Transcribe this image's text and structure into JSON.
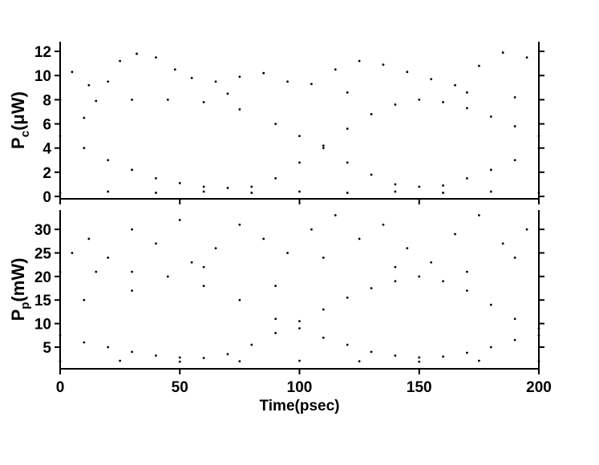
{
  "chart_data": [
    {
      "type": "scatter",
      "y_label": {
        "main": "P",
        "sub": "c",
        "unit": "(μW)"
      },
      "xlim": [
        0,
        200
      ],
      "xticks": [
        0,
        50,
        100,
        150,
        200
      ],
      "ylim": [
        -0.2,
        12.8
      ],
      "yticks": [
        0,
        2,
        4,
        6,
        8,
        10,
        12
      ],
      "color": "#000000",
      "x": [
        0,
        20,
        40,
        60,
        80,
        100,
        120,
        140,
        160,
        180,
        200,
        0,
        10,
        20,
        30,
        40,
        50,
        60,
        70,
        80,
        90,
        100,
        110,
        120,
        130,
        140,
        150,
        160,
        170,
        180,
        190,
        200,
        0,
        15,
        30,
        45,
        60,
        75,
        90,
        100,
        110,
        120,
        130,
        140,
        150,
        160,
        170,
        180,
        190,
        200,
        5,
        12,
        25,
        32,
        40,
        48,
        55,
        65,
        75,
        85,
        95,
        105,
        115,
        125,
        135,
        145,
        155,
        165,
        175,
        185,
        195,
        20,
        70,
        120,
        170,
        10,
        190
      ],
      "values": [
        0.3,
        0.4,
        0.3,
        0.4,
        0.3,
        0.4,
        0.3,
        0.4,
        0.3,
        0.4,
        0.3,
        5,
        4,
        3,
        2.2,
        1.5,
        1.1,
        0.8,
        0.7,
        0.8,
        1.5,
        2.8,
        4.2,
        5.6,
        6.8,
        7.6,
        8,
        7.8,
        7.3,
        6.6,
        5.8,
        5,
        8,
        7.9,
        8,
        8,
        7.8,
        7.2,
        6,
        5,
        4,
        2.8,
        1.8,
        1,
        0.8,
        0.9,
        1.5,
        2.2,
        3,
        4,
        10.3,
        9.2,
        11.2,
        11.8,
        11.5,
        10.5,
        9.8,
        9.5,
        9.9,
        10.2,
        9.5,
        9.3,
        10.5,
        11.2,
        10.9,
        10.3,
        9.7,
        9.2,
        10.8,
        11.9,
        11.5,
        9.5,
        8.5,
        8.6,
        8.6,
        6.5,
        8.2
      ]
    },
    {
      "type": "scatter",
      "y_label": {
        "main": "P",
        "sub": "p",
        "unit": "(mW)"
      },
      "x_label": "Time(psec)",
      "xlim": [
        0,
        200
      ],
      "xticks": [
        0,
        50,
        100,
        150,
        200
      ],
      "ylim": [
        0.4,
        34.1
      ],
      "yticks": [
        5,
        10,
        15,
        20,
        25,
        30
      ],
      "color": "#000000",
      "x": [
        0,
        25,
        50,
        75,
        100,
        125,
        150,
        175,
        200,
        0,
        10,
        20,
        30,
        40,
        50,
        60,
        70,
        80,
        90,
        100,
        110,
        120,
        130,
        140,
        150,
        160,
        170,
        180,
        190,
        200,
        0,
        15,
        30,
        45,
        60,
        75,
        90,
        100,
        110,
        120,
        130,
        140,
        150,
        160,
        170,
        180,
        190,
        200,
        5,
        12,
        20,
        30,
        40,
        50,
        55,
        65,
        75,
        85,
        95,
        105,
        115,
        125,
        135,
        145,
        155,
        165,
        175,
        185,
        195,
        10,
        30,
        60,
        90,
        110,
        140,
        170,
        190
      ],
      "values": [
        2,
        2.1,
        1.9,
        2,
        2.1,
        2,
        1.9,
        2.1,
        2,
        7.5,
        6,
        5,
        4,
        3.2,
        2.8,
        2.7,
        3.5,
        5.5,
        8,
        10.5,
        13,
        15.5,
        17.5,
        19,
        20,
        19,
        17,
        14,
        11,
        9,
        21,
        21,
        21,
        20,
        18,
        15,
        11,
        9,
        7,
        5.5,
        4,
        3.2,
        2.8,
        3,
        3.8,
        5,
        6.5,
        7.5,
        25,
        28,
        24,
        30,
        27,
        32,
        23,
        26,
        31,
        28,
        25,
        30,
        33,
        28,
        31,
        26,
        23,
        29,
        33,
        27,
        30,
        15,
        17,
        22,
        18,
        24,
        22,
        21,
        24
      ]
    }
  ]
}
